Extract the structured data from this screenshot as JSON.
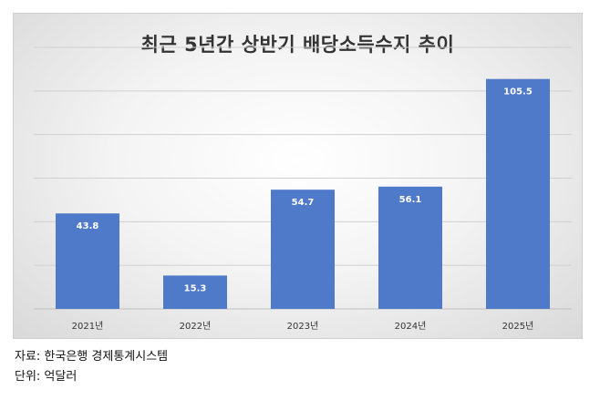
{
  "chart_data": {
    "type": "bar",
    "title": "최근 5년간 상반기 배당소득수지 추이",
    "categories": [
      "2021년",
      "2022년",
      "2023년",
      "2024년",
      "2025년"
    ],
    "values": [
      43.8,
      15.3,
      54.7,
      56.1,
      105.5
    ],
    "value_labels": [
      "43.8",
      "15.3",
      "54.7",
      "56.1",
      "105.5"
    ],
    "ylim": [
      0,
      120
    ],
    "grid": true,
    "bar_color": "#4f79c9",
    "label_color": "#ffffff"
  },
  "notes": {
    "source": "자료: 한국은행 경제통계시스템",
    "unit": "단위: 억달러"
  }
}
